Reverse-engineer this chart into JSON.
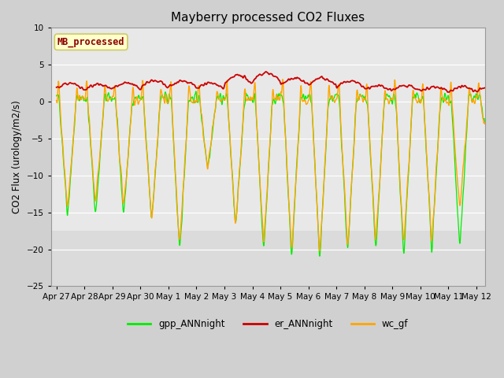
{
  "title": "Mayberry processed CO2 Fluxes",
  "ylabel": "CO2 Flux (urology/m2/s)",
  "ylim": [
    -25,
    10
  ],
  "yticks": [
    -25,
    -20,
    -15,
    -10,
    -5,
    0,
    5,
    10
  ],
  "fig_bg_color": "#d0d0d0",
  "plot_bg_color": "#e8e8e8",
  "legend_entries": [
    "gpp_ANNnight",
    "er_ANNnight",
    "wc_gf"
  ],
  "legend_colors": [
    "#00ee00",
    "#cc0000",
    "#ffa500"
  ],
  "annotation_text": "MB_processed",
  "annotation_color": "#8b0000",
  "annotation_bg": "#ffffcc",
  "date_labels": [
    "Apr 27",
    "Apr 28",
    "Apr 29",
    "Apr 30",
    "May 1",
    "May 2",
    "May 3",
    "May 4",
    "May 5",
    "May 6",
    "May 7",
    "May 8",
    "May 9",
    "May 10",
    "May 11",
    "May 12"
  ],
  "n_days": 16,
  "pts_per_day": 96,
  "gpp_depths": [
    -15.5,
    -15.5,
    -15.5,
    -16.5,
    -21.0,
    -9.0,
    -17.5,
    -20.5,
    -21.5,
    -22.0,
    -21.0,
    -20.5,
    -21.0,
    -20.5,
    -20.5,
    -5.0
  ],
  "wc_depths": [
    -14.5,
    -14.0,
    -14.5,
    -16.5,
    -20.0,
    -9.0,
    -17.0,
    -19.5,
    -20.5,
    -21.0,
    -20.0,
    -19.5,
    -20.0,
    -19.5,
    -15.0,
    -5.0
  ],
  "er_peaks": [
    2.5,
    2.3,
    2.5,
    2.8,
    2.8,
    2.5,
    3.5,
    4.0,
    3.2,
    3.2,
    2.8,
    2.2,
    2.2,
    2.0,
    2.0,
    2.0
  ]
}
